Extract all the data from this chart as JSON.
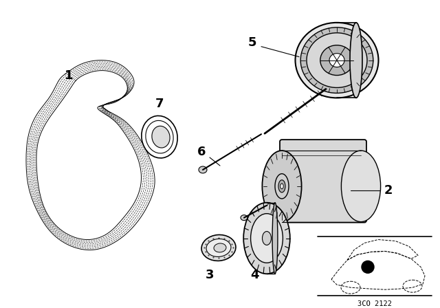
{
  "background_color": "#ffffff",
  "fig_width": 6.4,
  "fig_height": 4.48,
  "dpi": 100,
  "diagram_code_text": "3CO 2122",
  "line_color": "#000000",
  "line_width": 1.0
}
